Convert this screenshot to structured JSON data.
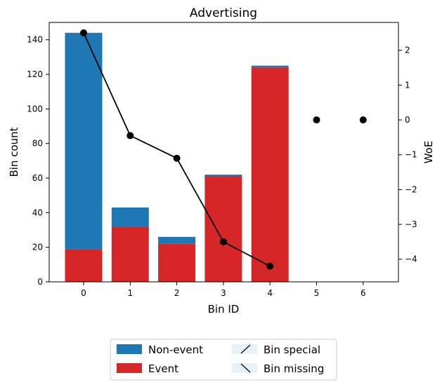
{
  "chart_data": {
    "type": "bar",
    "title": "Advertising",
    "xlabel": "Bin ID",
    "ylabel": "Bin count",
    "y2label": "WoE",
    "categories": [
      "0",
      "1",
      "2",
      "3",
      "4",
      "5",
      "6"
    ],
    "ylim": [
      0,
      150
    ],
    "y2lim": [
      -4.65,
      2.8
    ],
    "yticks": [
      0,
      20,
      40,
      60,
      80,
      100,
      120,
      140
    ],
    "y2ticks": [
      -4,
      -3,
      -2,
      -1,
      0,
      1,
      2
    ],
    "y2tick_labels": [
      "−4",
      "−3",
      "−2",
      "−1",
      "0",
      "1",
      "2"
    ],
    "series": [
      {
        "name": "Non-event",
        "values": [
          125,
          11,
          4,
          1,
          1,
          0,
          0
        ],
        "color": "#1f77b4"
      },
      {
        "name": "Event",
        "values": [
          19,
          32,
          22,
          61,
          124,
          0,
          0
        ],
        "color": "#d62728"
      }
    ],
    "woe": {
      "line_values": [
        2.5,
        -0.45,
        -1.1,
        -3.5,
        -4.2
      ],
      "point_values": [
        2.5,
        -0.45,
        -1.1,
        -3.5,
        -4.2,
        0,
        0
      ],
      "color": "#000000"
    },
    "legend": {
      "placement": "bottom-center",
      "entries": [
        {
          "label": "Non-event",
          "kind": "bar",
          "color": "#1f77b4"
        },
        {
          "label": "Event",
          "kind": "bar",
          "color": "#d62728"
        },
        {
          "label": "Bin special",
          "kind": "hatch-forward",
          "color": "#e8f0f8"
        },
        {
          "label": "Bin missing",
          "kind": "hatch-back",
          "color": "#e8f0f8"
        }
      ]
    },
    "grid": false
  }
}
